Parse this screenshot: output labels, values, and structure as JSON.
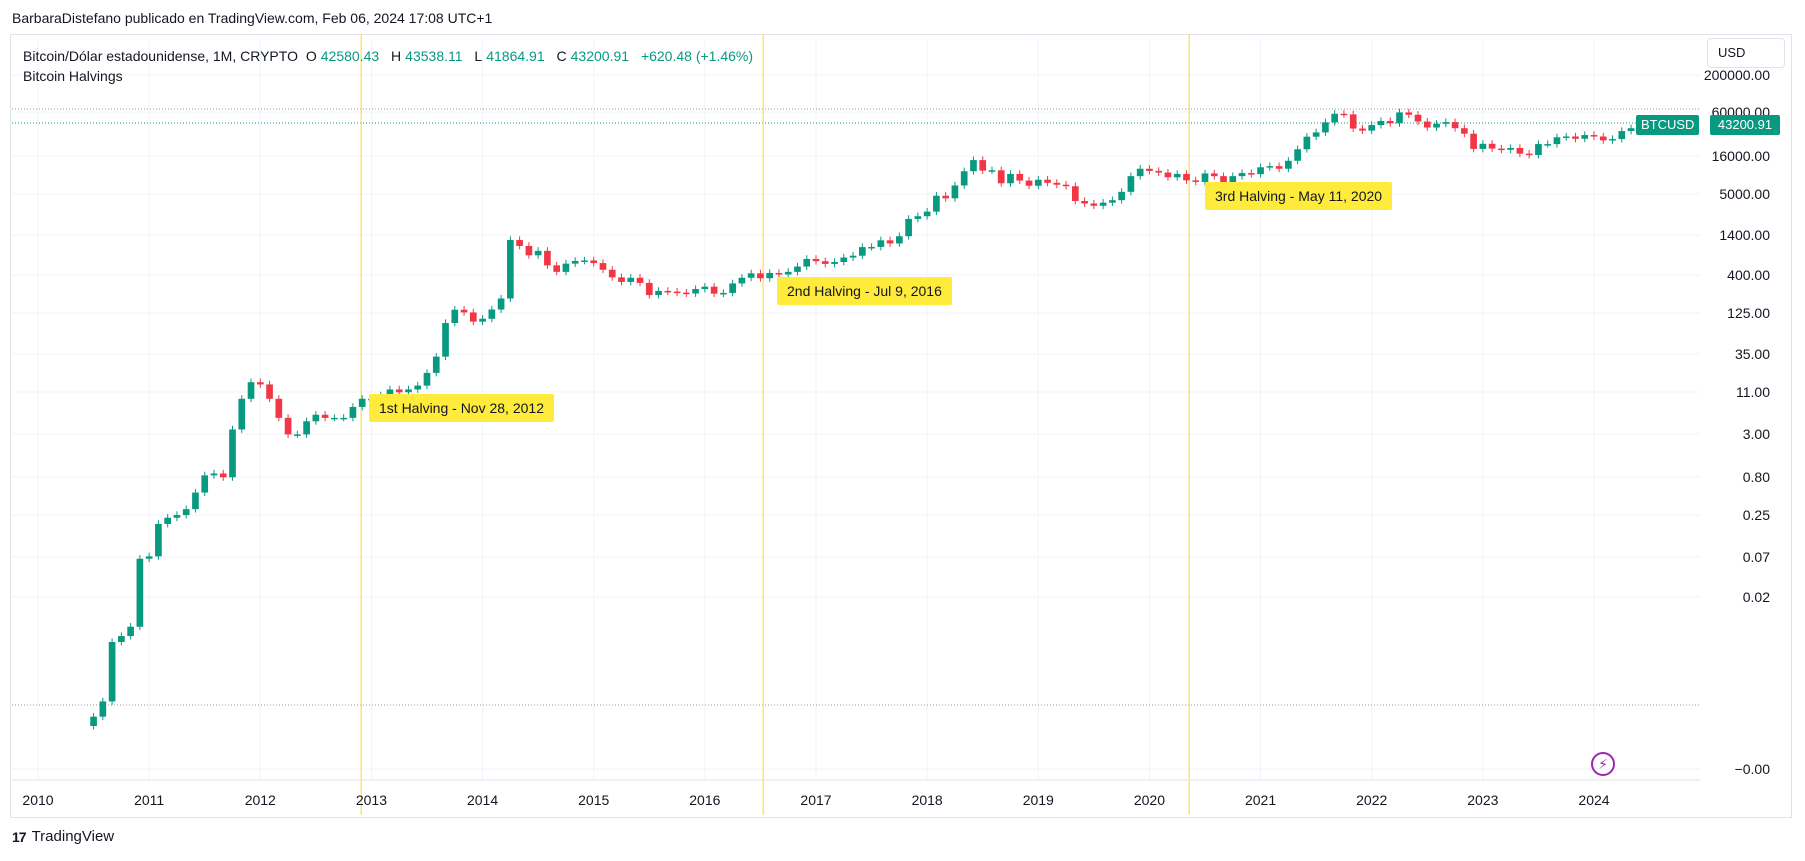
{
  "attribution": "BarbaraDistefano publicado en TradingView.com, Feb 06, 2024 17:08 UTC+1",
  "legend": {
    "symbol": "Bitcoin/Dólar estadounidense, 1M, CRYPTO",
    "o_label": "O",
    "o_value": "42580.43",
    "h_label": "H",
    "h_value": "43538.11",
    "l_label": "L",
    "l_value": "41864.91",
    "c_label": "C",
    "c_value": "43200.91",
    "change": "+620.48 (+1.46%)",
    "indicator": "Bitcoin Halvings"
  },
  "currency_button": "USD",
  "price_badge": {
    "symbol": "BTCUSD",
    "price": "43200.91"
  },
  "footer": {
    "brand": "TradingView",
    "logo_glyph": "17"
  },
  "colors": {
    "up": "#089981",
    "down": "#f23645",
    "halving_line": "#fbe34c",
    "halving_label_bg": "#ffeb3b"
  },
  "icons": {
    "flash": "lightning-icon"
  },
  "chart_data": {
    "type": "candlestick",
    "scale": "log",
    "y_tick_labels": [
      "200000.00",
      "60000.00",
      "16000.00",
      "5000.00",
      "1400.00",
      "400.00",
      "125.00",
      "35.00",
      "11.00",
      "3.00",
      "0.80",
      "0.25",
      "0.07",
      "0.02",
      "−0.00"
    ],
    "x_tick_labels": [
      "2010",
      "2011",
      "2012",
      "2013",
      "2014",
      "2015",
      "2016",
      "2017",
      "2018",
      "2019",
      "2020",
      "2021",
      "2022",
      "2023",
      "2024"
    ],
    "halvings": [
      {
        "date": "2012-11-28",
        "label": "1st Halving - Nov 28, 2012"
      },
      {
        "date": "2016-07-09",
        "label": "2nd Halving - Jul 9, 2016"
      },
      {
        "date": "2020-05-11",
        "label": "3rd Halving - May 11, 2020"
      }
    ],
    "last_price": 43200.91,
    "monthly_close": [
      0.0005,
      0.0008,
      0.005,
      0.006,
      0.008,
      0.065,
      0.07,
      0.19,
      0.23,
      0.25,
      0.3,
      0.5,
      0.85,
      0.9,
      0.8,
      3.5,
      9,
      15,
      14,
      9,
      5,
      3,
      3,
      4.5,
      5.5,
      5,
      5,
      5,
      7,
      9,
      9,
      10,
      12,
      11,
      12,
      13.5,
      20,
      33,
      93,
      140,
      129,
      97,
      106,
      141,
      198,
      1200,
      1000,
      750,
      860,
      550,
      450,
      580,
      630,
      640,
      590,
      480,
      380,
      330,
      375,
      320,
      220,
      250,
      245,
      237,
      231,
      265,
      285,
      230,
      235,
      315,
      375,
      430,
      370,
      435,
      415,
      450,
      530,
      670,
      625,
      575,
      610,
      700,
      740,
      965,
      970,
      1190,
      1080,
      1350,
      2300,
      2500,
      2880,
      4700,
      4340,
      6450,
      10000,
      14100,
      10200,
      10300,
      6900,
      9200,
      7500,
      6400,
      7700,
      7000,
      6600,
      6300,
      4000,
      3700,
      3450,
      3800,
      4100,
      5300,
      8600,
      10800,
      10100,
      9600,
      8300,
      9200,
      7550,
      7200,
      9350,
      8600,
      6400,
      8600,
      9450,
      9150,
      11300,
      11700,
      10800,
      13800,
      19700,
      29000,
      33100,
      45200,
      58800,
      57700,
      37300,
      35000,
      41500,
      47100,
      43800,
      61300,
      57000,
      46300,
      38500,
      43200,
      45500,
      37700,
      31800,
      19900,
      23300,
      20100,
      19400,
      20500,
      17200,
      16500,
      23100,
      23100,
      28500,
      29200,
      27200,
      30500,
      29200,
      25900,
      27000,
      34500,
      37700,
      42300,
      42580,
      43200.91
    ]
  }
}
